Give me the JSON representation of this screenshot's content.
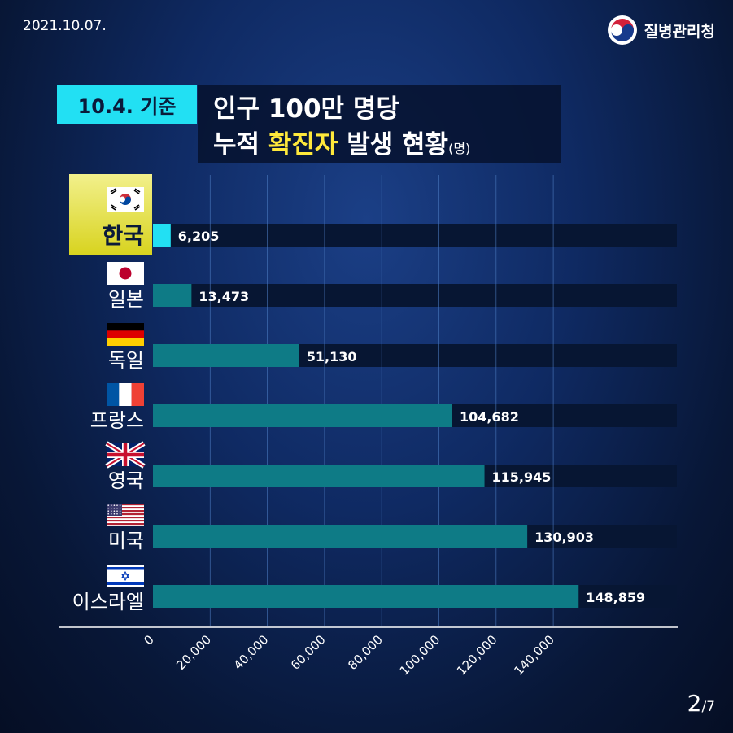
{
  "header": {
    "date": "2021.10.07.",
    "org_name": "질병관리청"
  },
  "badge": "10.4. 기준",
  "title": {
    "line1": "인구 100만 명당",
    "line2_pre": "누적 ",
    "line2_highlight": "확진자",
    "line2_post": " 발생 현황",
    "unit": "(명)"
  },
  "colors": {
    "highlight_bar": "#22e0f3",
    "bar": "#0e7b86",
    "track": "#071633",
    "title_highlight": "#ffe93b"
  },
  "chart_data": {
    "type": "bar",
    "orientation": "horizontal",
    "categories": [
      "한국",
      "일본",
      "독일",
      "프랑스",
      "영국",
      "미국",
      "이스라엘"
    ],
    "flags": [
      "korea-flag-icon",
      "japan-flag-icon",
      "germany-flag-icon",
      "france-flag-icon",
      "uk-flag-icon",
      "usa-flag-icon",
      "israel-flag-icon"
    ],
    "values": [
      6205,
      13473,
      51130,
      104682,
      115945,
      130903,
      148859
    ],
    "value_labels": [
      "6,205",
      "13,473",
      "51,130",
      "104,682",
      "115,945",
      "130,903",
      "148,859"
    ],
    "highlight_index": 0,
    "xlim": [
      0,
      180000
    ],
    "x_ticks": [
      0,
      20000,
      40000,
      60000,
      80000,
      100000,
      120000,
      140000
    ],
    "x_tick_labels": [
      "0",
      "20,000",
      "40,000",
      "60,000",
      "80,000",
      "100,000",
      "120,000",
      "140,000"
    ],
    "grid": true
  },
  "pagination": {
    "current": "2",
    "total": "/7"
  }
}
